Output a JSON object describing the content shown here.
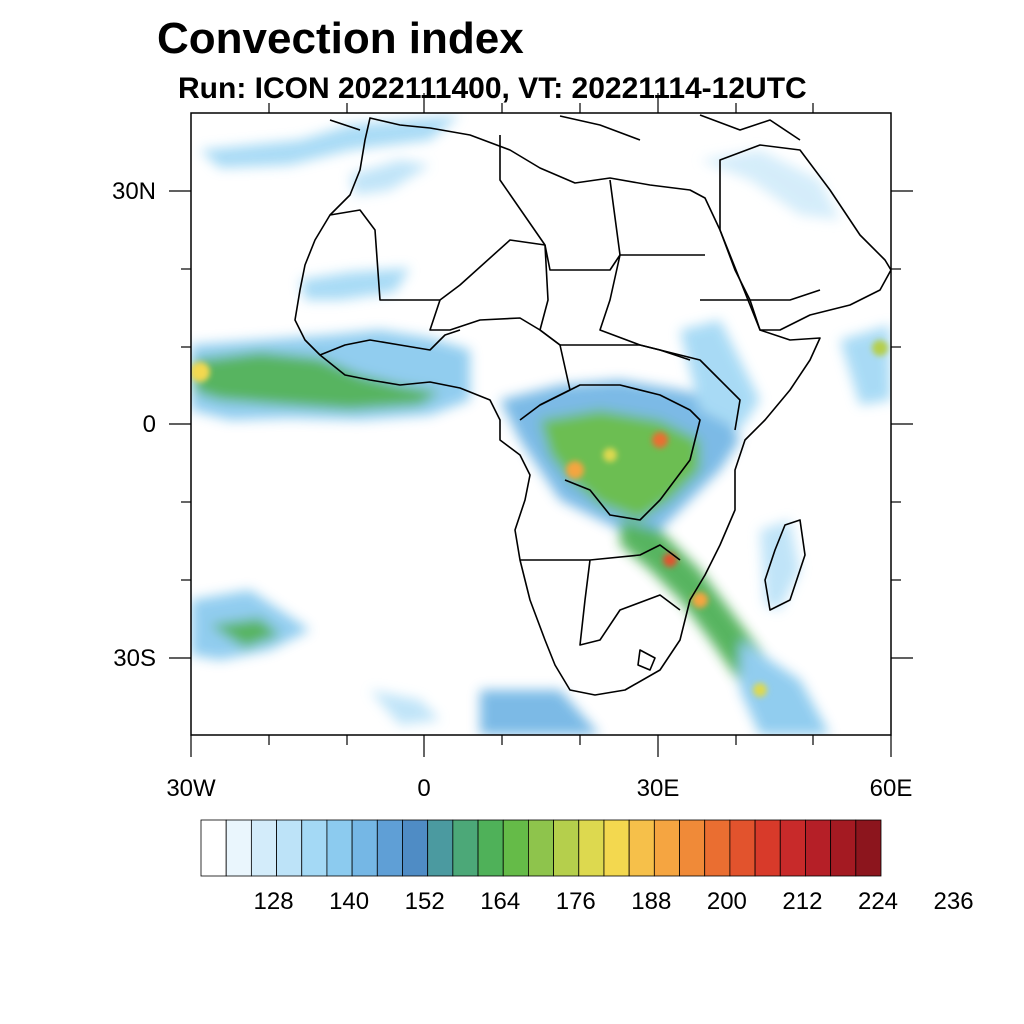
{
  "title": "Convection index",
  "subtitle": "Run: ICON 2022111400,  VT: 20221114-12UTC",
  "lat_labels": [
    "30N",
    "0",
    "30S"
  ],
  "lon_labels": [
    "30W",
    "0",
    "30E",
    "60E"
  ],
  "map": {
    "lon_range": [
      -30,
      60
    ],
    "lat_range": [
      -40,
      40
    ],
    "major_lon_ticks": [
      -30,
      0,
      30,
      60
    ],
    "minor_lon_ticks": [
      -20,
      -10,
      10,
      20,
      40,
      50
    ],
    "major_lat_ticks": [
      30,
      0,
      -30
    ],
    "minor_lat_ticks": [
      20,
      10,
      -10,
      -20
    ]
  },
  "colorbar": {
    "labels": [
      "128",
      "140",
      "152",
      "164",
      "176",
      "188",
      "200",
      "212",
      "224",
      "236"
    ],
    "colors": [
      "#ffffff",
      "#eaf6fd",
      "#d3ecfa",
      "#bde3f8",
      "#a4d9f5",
      "#8ccbef",
      "#75b7e5",
      "#5f9fd6",
      "#4f8cc5",
      "#4b9aa0",
      "#4ca878",
      "#4fb159",
      "#65bb48",
      "#8ec44c",
      "#b5cf4c",
      "#ddd94f",
      "#f3d84f",
      "#f6c04a",
      "#f5a541",
      "#f08a38",
      "#ea6e31",
      "#e2532d",
      "#d83a2a",
      "#c82a2a",
      "#b51f27",
      "#a41a22",
      "#8c151d"
    ]
  }
}
